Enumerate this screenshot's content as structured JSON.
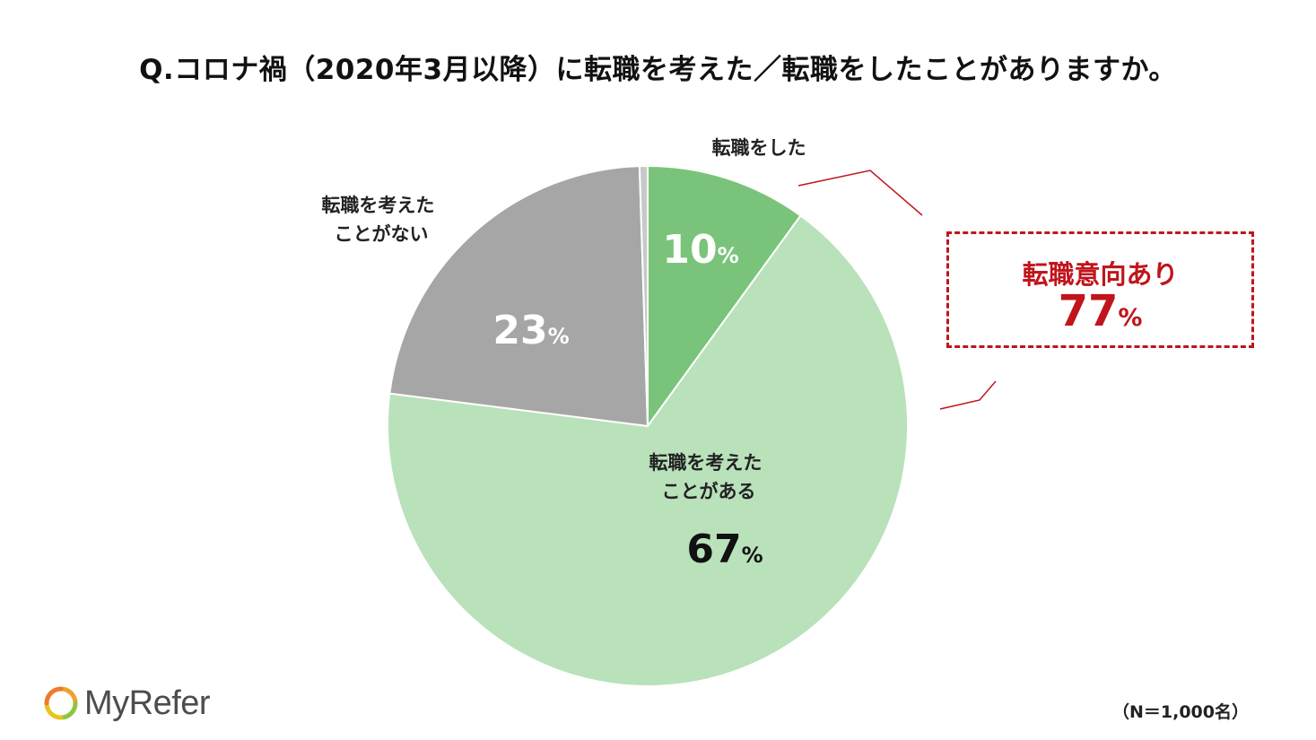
{
  "chart_data": {
    "type": "pie",
    "title": "Q.コロナ禍（2020年3月以降）に転職を考えた／転職をしたことがありますか。",
    "slices": [
      {
        "label_lines": [
          "転職をした"
        ],
        "value": 10,
        "value_text": "10",
        "unit": "%",
        "color": "#79c47a"
      },
      {
        "label_lines": [
          "転職を考えた",
          "ことがある"
        ],
        "value": 67,
        "value_text": "67",
        "unit": "%",
        "color": "#b9e1ba"
      },
      {
        "label_lines": [
          "転職を考えた",
          "ことがない"
        ],
        "value": 22.5,
        "value_text": "23",
        "unit": "%",
        "color": "#a6a6a6"
      },
      {
        "label_lines": [],
        "value": 0.5,
        "value_text": "",
        "unit": "",
        "color": "#c8c8c8"
      }
    ],
    "callout": {
      "label": "転職意向あり",
      "value": "77",
      "unit": "%",
      "color": "#c0151b"
    },
    "note": "（N＝1,000名）"
  },
  "brand": {
    "name": "MyRefer"
  }
}
